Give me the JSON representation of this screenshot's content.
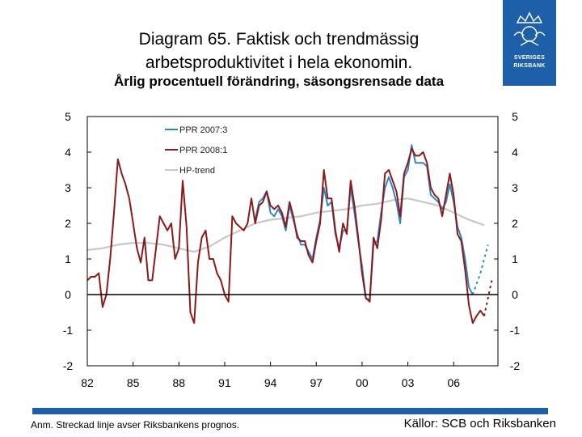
{
  "title_line1": "Diagram 65. Faktisk och trendmässig",
  "title_line2": "arbetsproduktivitet i hela ekonomin.",
  "subtitle": "Årlig procentuell förändring, säsongsrensade data",
  "logo": {
    "text1": "SVERIGES",
    "text2": "RIKSBANK",
    "icon": "crown-logo-icon"
  },
  "footnote": "Anm. Streckad linje avser Riksbankens prognos.",
  "source": "Källor: SCB och Riksbanken",
  "colors": {
    "ppr2007": "#2e86c1",
    "ppr2008": "#8b1a1a",
    "trend": "#c8c8c8",
    "brand": "#1d5fa8"
  },
  "chart_data": {
    "type": "line",
    "title": "Faktisk och trendmässig arbetsproduktivitet i hela ekonomin",
    "ylim": [
      -2,
      5
    ],
    "xlim": [
      1982.0,
      2008.9
    ],
    "yticks": [
      -2,
      -1,
      0,
      1,
      2,
      3,
      4,
      5
    ],
    "ytick_labels": [
      "-2",
      "-1",
      "0",
      "1",
      "2",
      "3",
      "4",
      "5"
    ],
    "xticks": [
      1982,
      1985,
      1988,
      1991,
      1994,
      1997,
      2000,
      2003,
      2006
    ],
    "xtick_labels": [
      "82",
      "85",
      "88",
      "91",
      "94",
      "97",
      "00",
      "03",
      "06"
    ],
    "legend": [
      "PPR 2007:3",
      "PPR 2008:1",
      "HP-trend"
    ],
    "series": [
      {
        "name": "PPR 2008:1",
        "color": "#8b1a1a",
        "dashed": false,
        "x": [
          1982.0,
          1982.25,
          1982.5,
          1982.75,
          1983.0,
          1983.25,
          1983.5,
          1983.75,
          1984.0,
          1984.25,
          1984.5,
          1984.75,
          1985.0,
          1985.25,
          1985.5,
          1985.75,
          1986.0,
          1986.25,
          1986.5,
          1986.75,
          1987.0,
          1987.25,
          1987.5,
          1987.75,
          1988.0,
          1988.25,
          1988.5,
          1988.75,
          1989.0,
          1989.25,
          1989.5,
          1989.75,
          1990.0,
          1990.25,
          1990.5,
          1990.75,
          1991.0,
          1991.25,
          1991.5,
          1991.75,
          1992.0,
          1992.25,
          1992.5,
          1992.75,
          1993.0,
          1993.25,
          1993.5,
          1993.75,
          1994.0,
          1994.25,
          1994.5,
          1994.75,
          1995.0,
          1995.25,
          1995.5,
          1995.75,
          1996.0,
          1996.25,
          1996.5,
          1996.75,
          1997.0,
          1997.25,
          1997.5,
          1997.75,
          1998.0,
          1998.25,
          1998.5,
          1998.75,
          1999.0,
          1999.25,
          1999.5,
          1999.75,
          2000.0,
          2000.25,
          2000.5,
          2000.75,
          2001.0,
          2001.25,
          2001.5,
          2001.75,
          2002.0,
          2002.25,
          2002.5,
          2002.75,
          2003.0,
          2003.25,
          2003.5,
          2003.75,
          2004.0,
          2004.25,
          2004.5,
          2004.75,
          2005.0,
          2005.25,
          2005.5,
          2005.75,
          2006.0,
          2006.25,
          2006.5,
          2006.75,
          2007.0,
          2007.25,
          2007.5,
          2007.75,
          2008.0
        ],
        "y": [
          0.4,
          0.5,
          0.5,
          0.6,
          -0.35,
          0.0,
          1.0,
          2.3,
          3.8,
          3.4,
          3.1,
          2.7,
          2.0,
          1.3,
          0.9,
          1.6,
          0.4,
          0.4,
          1.3,
          2.2,
          2.0,
          1.8,
          2.0,
          1.0,
          1.3,
          3.2,
          1.9,
          -0.5,
          -0.8,
          0.9,
          1.6,
          1.8,
          1.0,
          1.0,
          0.6,
          0.4,
          0.0,
          -0.2,
          2.2,
          2.0,
          1.9,
          1.8,
          2.0,
          2.7,
          2.0,
          2.5,
          2.6,
          2.9,
          2.5,
          2.4,
          2.5,
          2.3,
          1.9,
          2.6,
          2.2,
          1.6,
          1.5,
          1.5,
          1.1,
          0.9,
          1.5,
          2.0,
          3.5,
          2.7,
          2.7,
          1.8,
          1.2,
          2.0,
          1.7,
          3.2,
          2.5,
          1.6,
          0.6,
          -0.1,
          -0.2,
          1.6,
          1.3,
          2.1,
          3.4,
          3.5,
          3.2,
          2.9,
          2.2,
          3.4,
          3.7,
          4.1,
          3.9,
          3.9,
          4.0,
          3.7,
          3.0,
          2.8,
          2.7,
          2.2,
          2.8,
          3.4,
          2.8,
          1.7,
          1.5,
          0.7,
          -0.3,
          -0.8,
          -0.6,
          -0.45,
          -0.6
        ]
      },
      {
        "name": "PPR 2007:3",
        "color": "#2e86c1",
        "dashed": false,
        "x": [
          1993.0,
          1993.25,
          1993.5,
          1993.75,
          1994.0,
          1994.25,
          1994.5,
          1994.75,
          1995.0,
          1995.25,
          1995.5,
          1995.75,
          1996.0,
          1996.25,
          1996.5,
          1996.75,
          1997.0,
          1997.25,
          1997.5,
          1997.75,
          1998.0,
          1998.25,
          1998.5,
          1998.75,
          1999.0,
          1999.25,
          1999.5,
          1999.75,
          2000.0,
          2000.25,
          2000.5,
          2000.75,
          2001.0,
          2001.25,
          2001.5,
          2001.75,
          2002.0,
          2002.25,
          2002.5,
          2002.75,
          2003.0,
          2003.25,
          2003.5,
          2003.75,
          2004.0,
          2004.25,
          2004.5,
          2004.75,
          2005.0,
          2005.25,
          2005.5,
          2005.75,
          2006.0,
          2006.25,
          2006.5,
          2006.75,
          2007.0,
          2007.25
        ],
        "y": [
          2.1,
          2.6,
          2.7,
          2.9,
          2.3,
          2.2,
          2.4,
          2.2,
          1.8,
          2.5,
          2.1,
          1.7,
          1.4,
          1.4,
          1.2,
          1.0,
          1.6,
          2.1,
          3.0,
          2.5,
          2.6,
          1.7,
          1.3,
          1.8,
          1.8,
          3.0,
          2.3,
          1.5,
          0.8,
          -0.1,
          -0.15,
          1.4,
          1.5,
          2.3,
          3.0,
          3.3,
          3.0,
          2.6,
          2.0,
          3.3,
          3.5,
          4.2,
          3.7,
          3.7,
          3.7,
          3.6,
          2.8,
          2.7,
          2.6,
          2.4,
          2.6,
          3.1,
          2.6,
          1.9,
          1.6,
          1.0,
          0.2,
          0.0
        ]
      },
      {
        "name": "PPR 2007:3 prognos",
        "color": "#2e86c1",
        "dashed": true,
        "x": [
          2007.25,
          2007.5,
          2007.75,
          2008.0,
          2008.25
        ],
        "y": [
          0.0,
          0.3,
          0.6,
          1.0,
          1.4
        ]
      },
      {
        "name": "PPR 2008:1 prognos",
        "color": "#8b1a1a",
        "dashed": true,
        "x": [
          2008.0,
          2008.25,
          2008.5
        ],
        "y": [
          -0.6,
          -0.1,
          0.4
        ]
      },
      {
        "name": "HP-trend",
        "color": "#c8c8c8",
        "dashed": false,
        "x": [
          1982.0,
          1983.0,
          1984.0,
          1985.0,
          1986.0,
          1987.0,
          1988.0,
          1989.0,
          1990.0,
          1991.0,
          1992.0,
          1993.0,
          1994.0,
          1995.0,
          1996.0,
          1997.0,
          1998.0,
          1999.0,
          2000.0,
          2001.0,
          2002.0,
          2003.0,
          2004.0,
          2005.0,
          2006.0,
          2007.0,
          2008.0
        ],
        "y": [
          1.25,
          1.3,
          1.4,
          1.45,
          1.45,
          1.4,
          1.3,
          1.2,
          1.35,
          1.6,
          1.8,
          2.0,
          2.1,
          2.15,
          2.2,
          2.3,
          2.35,
          2.4,
          2.5,
          2.55,
          2.65,
          2.7,
          2.6,
          2.5,
          2.3,
          2.1,
          1.95
        ]
      }
    ]
  }
}
